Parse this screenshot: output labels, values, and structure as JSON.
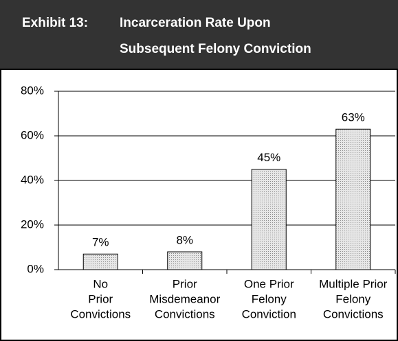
{
  "chart_data": {
    "type": "bar",
    "exhibit": "Exhibit 13:",
    "title": [
      "Incarceration Rate Upon",
      "Subsequent Felony Conviction"
    ],
    "categories": [
      [
        "No",
        "Prior",
        "Convictions"
      ],
      [
        "Prior",
        "Misdemeanor",
        "Convictions"
      ],
      [
        "One Prior",
        "Felony",
        "Conviction"
      ],
      [
        "Multiple Prior",
        "Felony",
        "Convictions"
      ]
    ],
    "values": [
      7,
      8,
      45,
      63
    ],
    "value_labels": [
      "7%",
      "8%",
      "45%",
      "63%"
    ],
    "color": "#d9d9d9",
    "ylim": [
      0,
      80
    ],
    "yticks": [
      {
        "value": 0,
        "label": "0%"
      },
      {
        "value": 20,
        "label": "20%"
      },
      {
        "value": 40,
        "label": "40%"
      },
      {
        "value": 60,
        "label": "60%"
      },
      {
        "value": 80,
        "label": "80%"
      }
    ],
    "grid": true
  }
}
